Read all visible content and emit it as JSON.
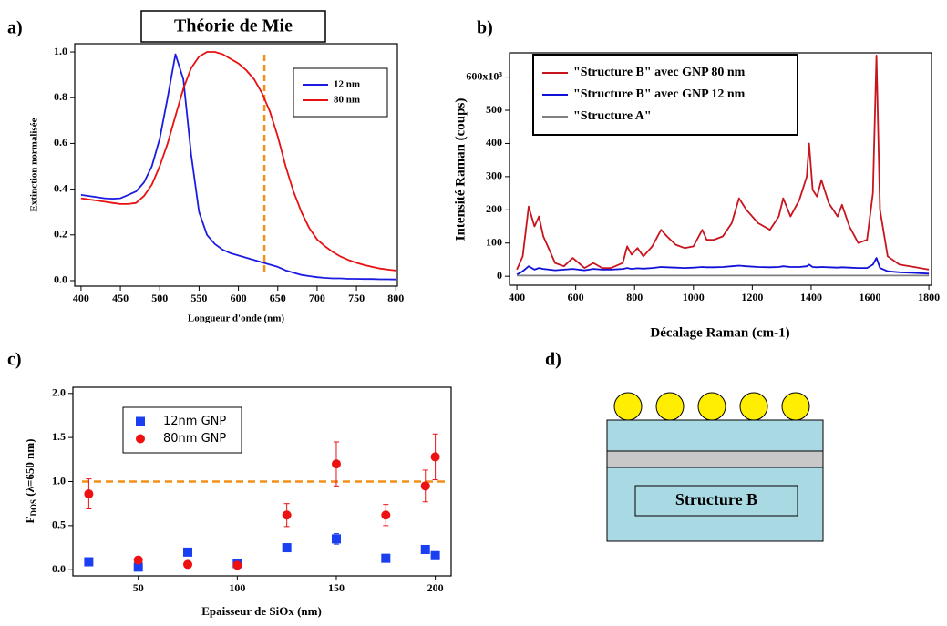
{
  "chart_data": [
    {
      "type": "line",
      "panel": "a)",
      "title": "Théorie de Mie",
      "xlabel": "Longueur d'onde (nm)",
      "ylabel": "Extinction normalisée",
      "x": [
        400,
        410,
        420,
        430,
        440,
        450,
        460,
        470,
        480,
        490,
        500,
        510,
        520,
        530,
        540,
        550,
        560,
        570,
        580,
        590,
        600,
        610,
        620,
        630,
        640,
        650,
        660,
        670,
        680,
        690,
        700,
        710,
        720,
        730,
        740,
        750,
        760,
        770,
        780,
        790,
        800
      ],
      "series": [
        {
          "name": "12 nm",
          "color": "#1c1ce0",
          "values": [
            0.375,
            0.37,
            0.365,
            0.36,
            0.358,
            0.36,
            0.375,
            0.39,
            0.43,
            0.5,
            0.62,
            0.8,
            0.99,
            0.88,
            0.55,
            0.3,
            0.2,
            0.16,
            0.135,
            0.12,
            0.11,
            0.1,
            0.09,
            0.08,
            0.07,
            0.06,
            0.045,
            0.035,
            0.025,
            0.02,
            0.015,
            0.012,
            0.01,
            0.01,
            0.008,
            0.008,
            0.007,
            0.007,
            0.006,
            0.006,
            0.005
          ]
        },
        {
          "name": "80 nm",
          "color": "#e81010",
          "values": [
            0.36,
            0.355,
            0.35,
            0.345,
            0.34,
            0.335,
            0.335,
            0.34,
            0.37,
            0.42,
            0.5,
            0.6,
            0.72,
            0.84,
            0.93,
            0.98,
            1.0,
            1.0,
            0.99,
            0.97,
            0.95,
            0.92,
            0.88,
            0.82,
            0.74,
            0.63,
            0.5,
            0.39,
            0.3,
            0.23,
            0.18,
            0.15,
            0.125,
            0.105,
            0.09,
            0.078,
            0.068,
            0.06,
            0.053,
            0.048,
            0.044
          ]
        }
      ],
      "xlim": [
        392,
        802
      ],
      "ylim": [
        -0.024,
        1.036
      ],
      "xticks": [
        400,
        450,
        500,
        550,
        600,
        650,
        700,
        750,
        800
      ],
      "yticks": [
        {
          "value": 0,
          "label": "0.0"
        },
        0.2,
        0.4,
        0.6,
        0.8,
        {
          "value": 1,
          "label": "1.0"
        }
      ],
      "vline_x": 633,
      "reference_color": "#f39019"
    },
    {
      "type": "line",
      "panel": "b)",
      "xlabel": "Décalage Raman (cm-1)",
      "ylabel": "Intensité Raman (coups)",
      "x": [
        400,
        420,
        440,
        460,
        475,
        490,
        510,
        530,
        560,
        590,
        610,
        630,
        660,
        690,
        720,
        760,
        775,
        790,
        810,
        830,
        860,
        890,
        910,
        940,
        970,
        1000,
        1030,
        1045,
        1070,
        1100,
        1130,
        1155,
        1180,
        1220,
        1260,
        1290,
        1305,
        1330,
        1360,
        1385,
        1393,
        1405,
        1420,
        1435,
        1460,
        1490,
        1505,
        1530,
        1560,
        1590,
        1610,
        1622,
        1634,
        1660,
        1700,
        1750,
        1800
      ],
      "series": [
        {
          "name": "\"Structure B\" avec GNP 80 nm",
          "color": "#c8141e",
          "values": [
            20,
            60,
            210,
            150,
            180,
            120,
            80,
            40,
            30,
            55,
            40,
            25,
            40,
            25,
            25,
            40,
            90,
            65,
            85,
            60,
            90,
            140,
            120,
            95,
            85,
            90,
            140,
            110,
            110,
            120,
            160,
            235,
            200,
            160,
            140,
            180,
            235,
            180,
            230,
            300,
            400,
            260,
            240,
            290,
            220,
            180,
            215,
            150,
            100,
            110,
            250,
            665,
            200,
            60,
            35,
            28,
            20
          ]
        },
        {
          "name": "\"Structure B\" avec GNP 12 nm",
          "color": "#1010d8",
          "values": [
            5,
            15,
            30,
            20,
            25,
            22,
            20,
            18,
            20,
            22,
            20,
            18,
            22,
            20,
            20,
            22,
            25,
            22,
            24,
            23,
            25,
            28,
            27,
            26,
            25,
            26,
            28,
            27,
            27,
            28,
            30,
            32,
            30,
            28,
            27,
            28,
            30,
            28,
            28,
            30,
            35,
            28,
            27,
            28,
            27,
            26,
            27,
            26,
            25,
            25,
            35,
            55,
            25,
            15,
            12,
            10,
            8
          ]
        },
        {
          "name": "\"Structure A\"",
          "color": "#808080",
          "values": [
            2,
            2,
            2,
            2,
            2,
            2,
            2,
            2,
            2,
            2,
            2,
            2,
            2,
            2,
            2,
            2,
            2,
            2,
            2,
            2,
            2,
            2,
            2,
            2,
            2,
            2,
            2,
            2,
            2,
            2,
            2,
            2,
            2,
            2,
            2,
            2,
            2,
            2,
            2,
            2,
            2,
            2,
            2,
            2,
            2,
            2,
            2,
            2,
            2,
            2,
            2,
            2,
            2,
            2,
            2,
            2,
            2
          ]
        }
      ],
      "xlim": [
        375,
        1809
      ],
      "ylim": [
        -27,
        673
      ],
      "xticks": [
        400,
        600,
        800,
        1000,
        1200,
        1400,
        1600,
        1800
      ],
      "yticks": [
        0,
        100,
        200,
        300,
        400,
        500,
        {
          "value": 600,
          "label": "600x10³"
        }
      ]
    },
    {
      "type": "scatter",
      "panel": "c)",
      "xlabel": "Epaisseur de SiOx (nm)",
      "ylabel": "F",
      "ylabel_sub": "DOS",
      "ylabel_rest": " (λ=650 nm)",
      "x": [
        25,
        50,
        75,
        100,
        125,
        150,
        175,
        195,
        200
      ],
      "series": [
        {
          "name": "12nm GNP",
          "color": "#1a3ff0",
          "marker": "square",
          "values": [
            0.09,
            0.03,
            0.2,
            0.07,
            0.25,
            0.35,
            0.13,
            0.23,
            0.16
          ],
          "errors": [
            0.02,
            0.02,
            0.02,
            0.02,
            0.03,
            0.06,
            0.02,
            0.03,
            0.02
          ]
        },
        {
          "name": "80nm GNP",
          "color": "#ee1111",
          "marker": "circle",
          "values": [
            0.86,
            0.11,
            0.06,
            0.05,
            0.62,
            1.2,
            0.62,
            0.95,
            1.28
          ],
          "errors": [
            0.17,
            0.02,
            0.02,
            0.02,
            0.13,
            0.25,
            0.12,
            0.18,
            0.26
          ]
        }
      ],
      "xlim": [
        17,
        208
      ],
      "ylim": [
        -0.07,
        2.07
      ],
      "xticks": [
        50,
        100,
        150,
        200
      ],
      "yticks": [
        {
          "value": 0,
          "label": "0.0"
        },
        0.5,
        {
          "value": 1,
          "label": "1.0"
        },
        1.5,
        {
          "value": 2,
          "label": "2.0"
        }
      ],
      "hline_y": 1,
      "reference_color": "#f39019"
    }
  ],
  "diagram": {
    "panel": "d)",
    "label": "Structure B"
  }
}
